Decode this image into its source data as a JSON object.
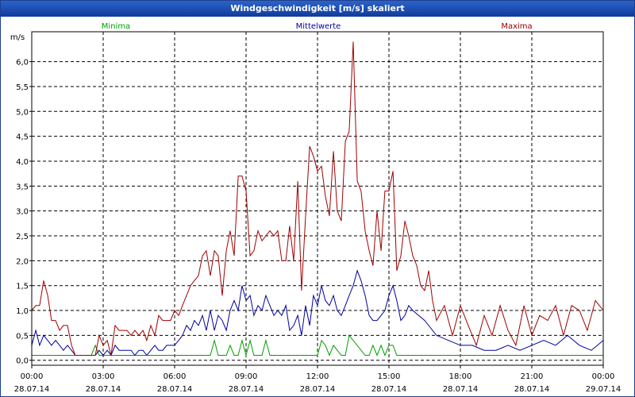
{
  "window": {
    "title": "Windgeschwindigkeit [m/s] skaliert"
  },
  "chart_data": {
    "type": "line",
    "title": "Windgeschwindigkeit [m/s] skaliert",
    "ylabel": "m/s",
    "ylim": [
      -0.1,
      6.6
    ],
    "yticks": [
      "0,0",
      "0,5",
      "1,0",
      "1,5",
      "2,0",
      "2,5",
      "3,0",
      "3,5",
      "4,0",
      "4,5",
      "5,0",
      "5,5",
      "6,0"
    ],
    "xlim": [
      0,
      24
    ],
    "xticks": [
      {
        "time": "00:00",
        "date": "28.07.14"
      },
      {
        "time": "03:00",
        "date": "28.07.14"
      },
      {
        "time": "06:00",
        "date": "28.07.14"
      },
      {
        "time": "09:00",
        "date": "28.07.14"
      },
      {
        "time": "12:00",
        "date": "28.07.14"
      },
      {
        "time": "15:00",
        "date": "28.07.14"
      },
      {
        "time": "18:00",
        "date": "28.07.14"
      },
      {
        "time": "21:00",
        "date": "28.07.14"
      },
      {
        "time": "00:00",
        "date": "29.07.14"
      }
    ],
    "grid": true,
    "legend_placement": "top",
    "series": [
      {
        "name": "Minima",
        "color": "#00a000",
        "x": [
          0,
          2.5,
          2.67,
          2.83,
          3.0,
          7.5,
          7.67,
          7.83,
          8.17,
          8.33,
          8.5,
          8.67,
          8.83,
          9.0,
          9.17,
          9.33,
          9.67,
          9.83,
          10.0,
          12.0,
          12.17,
          12.33,
          12.5,
          12.67,
          13.0,
          13.17,
          13.33,
          13.5,
          14.0,
          14.17,
          14.33,
          14.5,
          14.67,
          14.83,
          15.0,
          15.17,
          15.33,
          24
        ],
        "y": [
          0.1,
          0.1,
          0.3,
          0.1,
          0.1,
          0.1,
          0.4,
          0.1,
          0.1,
          0.3,
          0.1,
          0.1,
          0.4,
          0.1,
          0.4,
          0.1,
          0.1,
          0.4,
          0.1,
          0.1,
          0.4,
          0.3,
          0.1,
          0.3,
          0.1,
          0.1,
          0.5,
          0.4,
          0.1,
          0.1,
          0.3,
          0.1,
          0.3,
          0.1,
          0.3,
          0.3,
          0.1,
          0.1
        ]
      },
      {
        "name": "Mittelwerte",
        "color": "#0000a0",
        "x": [
          0,
          0.17,
          0.33,
          0.5,
          0.67,
          0.83,
          1.0,
          1.17,
          1.33,
          1.5,
          1.67,
          1.83,
          2.0,
          2.17,
          2.33,
          2.5,
          2.67,
          2.83,
          3.0,
          3.17,
          3.33,
          3.5,
          3.67,
          3.83,
          4.0,
          4.17,
          4.33,
          4.5,
          4.67,
          4.83,
          5.0,
          5.17,
          5.33,
          5.5,
          5.67,
          5.83,
          6.0,
          6.17,
          6.33,
          6.5,
          6.67,
          6.83,
          7.0,
          7.17,
          7.33,
          7.5,
          7.67,
          7.83,
          8.0,
          8.17,
          8.33,
          8.5,
          8.67,
          8.83,
          9.0,
          9.17,
          9.33,
          9.5,
          9.67,
          9.83,
          10.0,
          10.17,
          10.33,
          10.5,
          10.67,
          10.83,
          11.0,
          11.17,
          11.33,
          11.5,
          11.67,
          11.83,
          12.0,
          12.17,
          12.33,
          12.5,
          12.67,
          12.83,
          13.0,
          13.17,
          13.33,
          13.5,
          13.67,
          13.83,
          14.0,
          14.17,
          14.33,
          14.5,
          14.67,
          14.83,
          15.0,
          15.17,
          15.33,
          15.5,
          15.67,
          15.83,
          16.0,
          16.5,
          17.0,
          17.5,
          18.0,
          18.5,
          19.0,
          19.5,
          20.0,
          20.5,
          21.0,
          21.5,
          22.0,
          22.5,
          23.0,
          23.5,
          24.0
        ],
        "y": [
          0.3,
          0.6,
          0.3,
          0.5,
          0.4,
          0.3,
          0.4,
          0.3,
          0.2,
          0.3,
          0.2,
          0.1,
          0.1,
          0.1,
          0.1,
          0.1,
          0.1,
          0.2,
          0.1,
          0.2,
          0.1,
          0.3,
          0.2,
          0.2,
          0.2,
          0.2,
          0.1,
          0.2,
          0.2,
          0.1,
          0.2,
          0.3,
          0.2,
          0.2,
          0.3,
          0.3,
          0.3,
          0.4,
          0.5,
          0.7,
          0.6,
          0.8,
          0.7,
          0.9,
          0.6,
          1.0,
          0.6,
          0.9,
          0.8,
          0.6,
          1.0,
          1.2,
          1.0,
          1.5,
          1.2,
          1.3,
          0.9,
          1.1,
          1.0,
          1.3,
          1.1,
          0.9,
          1.0,
          0.9,
          1.1,
          0.6,
          0.7,
          0.9,
          0.5,
          1.1,
          0.7,
          1.3,
          1.1,
          1.5,
          1.2,
          1.1,
          1.3,
          1.0,
          0.9,
          1.1,
          1.3,
          1.5,
          1.8,
          1.6,
          1.3,
          0.9,
          0.8,
          0.8,
          0.9,
          1.0,
          1.3,
          1.5,
          1.2,
          0.8,
          0.9,
          1.1,
          1.0,
          0.8,
          0.5,
          0.4,
          0.3,
          0.3,
          0.2,
          0.2,
          0.3,
          0.2,
          0.3,
          0.4,
          0.3,
          0.5,
          0.3,
          0.2,
          0.4
        ]
      },
      {
        "name": "Maxima",
        "color": "#a00000",
        "x": [
          0,
          0.17,
          0.33,
          0.5,
          0.67,
          0.83,
          1.0,
          1.17,
          1.33,
          1.5,
          1.67,
          1.83,
          2.0,
          2.17,
          2.33,
          2.5,
          2.67,
          2.83,
          3.0,
          3.17,
          3.33,
          3.5,
          3.67,
          3.83,
          4.0,
          4.17,
          4.33,
          4.5,
          4.67,
          4.83,
          5.0,
          5.17,
          5.33,
          5.5,
          5.67,
          5.83,
          6.0,
          6.17,
          6.33,
          6.5,
          6.67,
          6.83,
          7.0,
          7.17,
          7.33,
          7.5,
          7.67,
          7.83,
          8.0,
          8.17,
          8.33,
          8.5,
          8.67,
          8.83,
          9.0,
          9.17,
          9.33,
          9.5,
          9.67,
          9.83,
          10.0,
          10.17,
          10.33,
          10.5,
          10.67,
          10.83,
          11.0,
          11.17,
          11.33,
          11.5,
          11.67,
          11.83,
          12.0,
          12.17,
          12.33,
          12.5,
          12.67,
          12.83,
          13.0,
          13.17,
          13.33,
          13.5,
          13.67,
          13.83,
          14.0,
          14.17,
          14.33,
          14.5,
          14.67,
          14.83,
          15.0,
          15.17,
          15.33,
          15.5,
          15.67,
          15.83,
          16.0,
          16.17,
          16.33,
          16.5,
          16.67,
          16.83,
          17.0,
          17.33,
          17.67,
          18.0,
          18.33,
          18.67,
          19.0,
          19.33,
          19.67,
          20.0,
          20.33,
          20.67,
          21.0,
          21.33,
          21.67,
          22.0,
          22.33,
          22.67,
          23.0,
          23.33,
          23.67,
          24.0
        ],
        "y": [
          1.0,
          1.1,
          1.1,
          1.6,
          1.3,
          0.8,
          0.8,
          0.6,
          0.7,
          0.7,
          0.3,
          0.1,
          0.1,
          0.1,
          0.1,
          0.1,
          0.1,
          0.5,
          0.3,
          0.4,
          0.1,
          0.7,
          0.6,
          0.6,
          0.6,
          0.5,
          0.6,
          0.5,
          0.6,
          0.4,
          0.7,
          0.5,
          0.9,
          0.8,
          0.8,
          0.8,
          1.0,
          0.9,
          1.1,
          1.3,
          1.5,
          1.6,
          1.7,
          2.1,
          2.2,
          1.7,
          2.2,
          2.1,
          1.3,
          2.2,
          2.6,
          2.1,
          3.7,
          3.7,
          3.4,
          2.1,
          2.2,
          2.6,
          2.4,
          2.5,
          2.6,
          2.5,
          2.6,
          2.0,
          2.0,
          2.7,
          2.0,
          3.6,
          1.4,
          2.9,
          4.3,
          4.1,
          3.8,
          3.9,
          3.3,
          2.9,
          4.2,
          3.0,
          2.8,
          4.4,
          4.6,
          6.4,
          3.6,
          3.4,
          2.6,
          2.2,
          1.9,
          3.0,
          2.2,
          3.4,
          3.4,
          3.8,
          1.8,
          2.1,
          2.8,
          2.5,
          2.1,
          1.9,
          1.5,
          1.4,
          1.8,
          1.2,
          0.8,
          1.1,
          0.5,
          1.1,
          0.7,
          0.3,
          0.9,
          0.5,
          1.1,
          0.6,
          0.3,
          1.1,
          0.5,
          0.9,
          0.8,
          1.1,
          0.5,
          1.1,
          1.0,
          0.6,
          1.2,
          1.0
        ]
      }
    ]
  }
}
